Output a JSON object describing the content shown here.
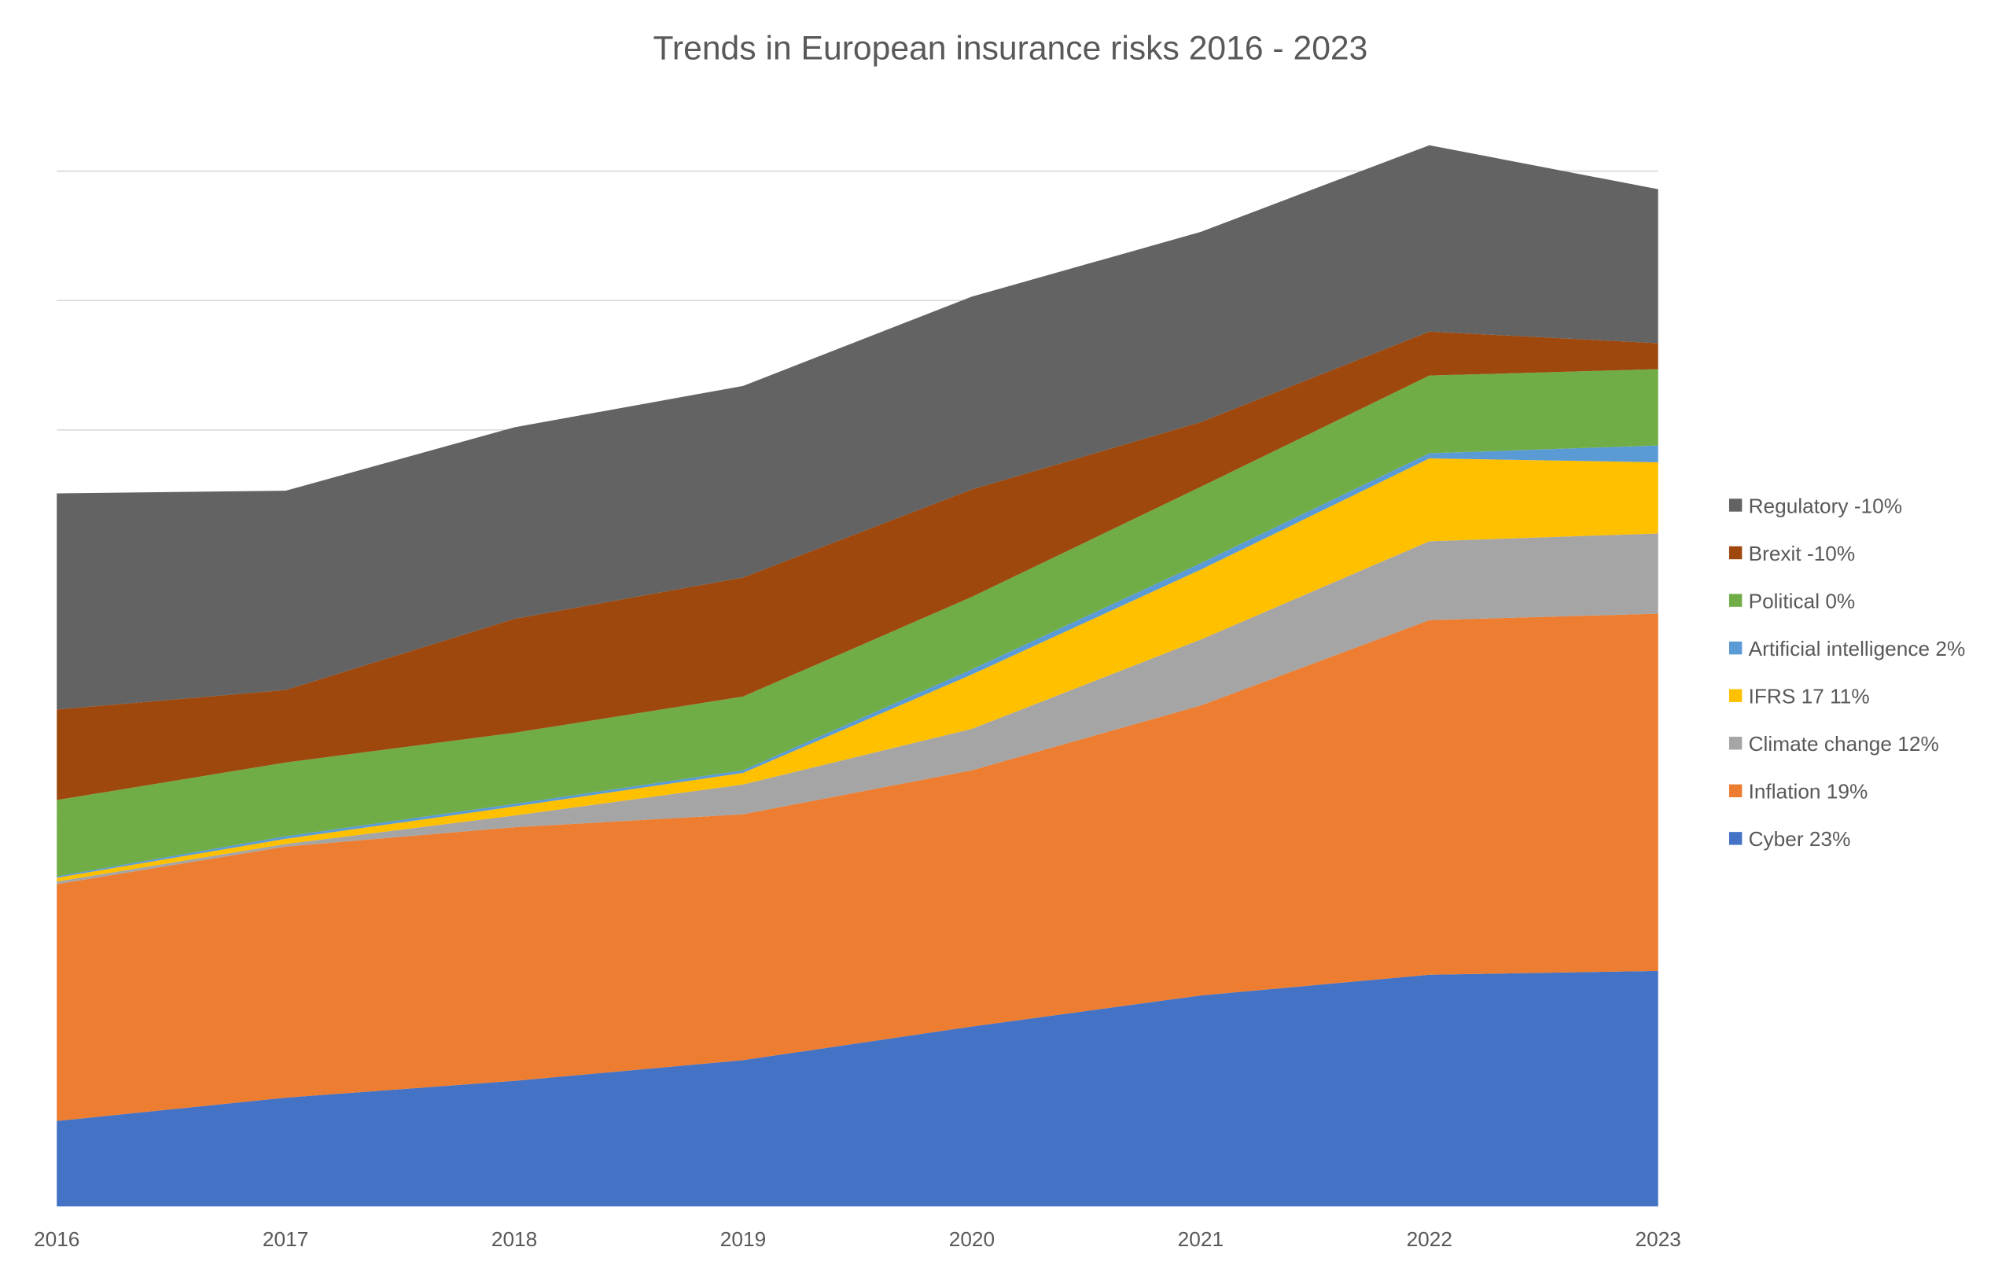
{
  "chart_data": {
    "type": "area",
    "stacked": true,
    "title": "Trends in European insurance risks 2016 - 2023",
    "xlabel": "",
    "ylabel": "",
    "categories": [
      "2016",
      "2017",
      "2018",
      "2019",
      "2020",
      "2021",
      "2022",
      "2023"
    ],
    "ylim": [
      0,
      82
    ],
    "grid": true,
    "y_tick_labels_shown": false,
    "legend_position": "right",
    "series": [
      {
        "name": "Cyber 23%",
        "color": "#4472C4",
        "values": [
          6.6,
          8.4,
          9.7,
          11.3,
          13.9,
          16.3,
          17.9,
          18.2
        ]
      },
      {
        "name": "Inflation 19%",
        "color": "#ED7D31",
        "values": [
          18.3,
          19.4,
          19.6,
          19.0,
          19.8,
          22.4,
          27.4,
          27.6
        ]
      },
      {
        "name": "Climate change 12%",
        "color": "#A5A5A5",
        "values": [
          0.2,
          0.2,
          0.9,
          2.3,
          3.2,
          5.1,
          6.1,
          6.2
        ]
      },
      {
        "name": "IFRS 17 11%",
        "color": "#FFC000",
        "values": [
          0.3,
          0.4,
          0.7,
          0.9,
          4.2,
          5.4,
          6.4,
          5.5
        ]
      },
      {
        "name": "Artificial intelligence 2%",
        "color": "#5B9BD5",
        "values": [
          0.1,
          0.2,
          0.2,
          0.2,
          0.4,
          0.5,
          0.4,
          1.3
        ]
      },
      {
        "name": "Political 0%",
        "color": "#70AD47",
        "values": [
          5.9,
          5.7,
          5.5,
          5.7,
          5.6,
          5.9,
          6.0,
          5.9
        ]
      },
      {
        "name": "Brexit -10%",
        "color": "#9E480E",
        "values": [
          7.0,
          5.6,
          8.8,
          9.2,
          8.3,
          5.0,
          3.4,
          2.0
        ]
      },
      {
        "name": "Regulatory  -10%",
        "color": "#636363",
        "values": [
          16.7,
          15.4,
          14.8,
          14.8,
          14.9,
          14.7,
          14.4,
          11.9
        ]
      }
    ]
  }
}
